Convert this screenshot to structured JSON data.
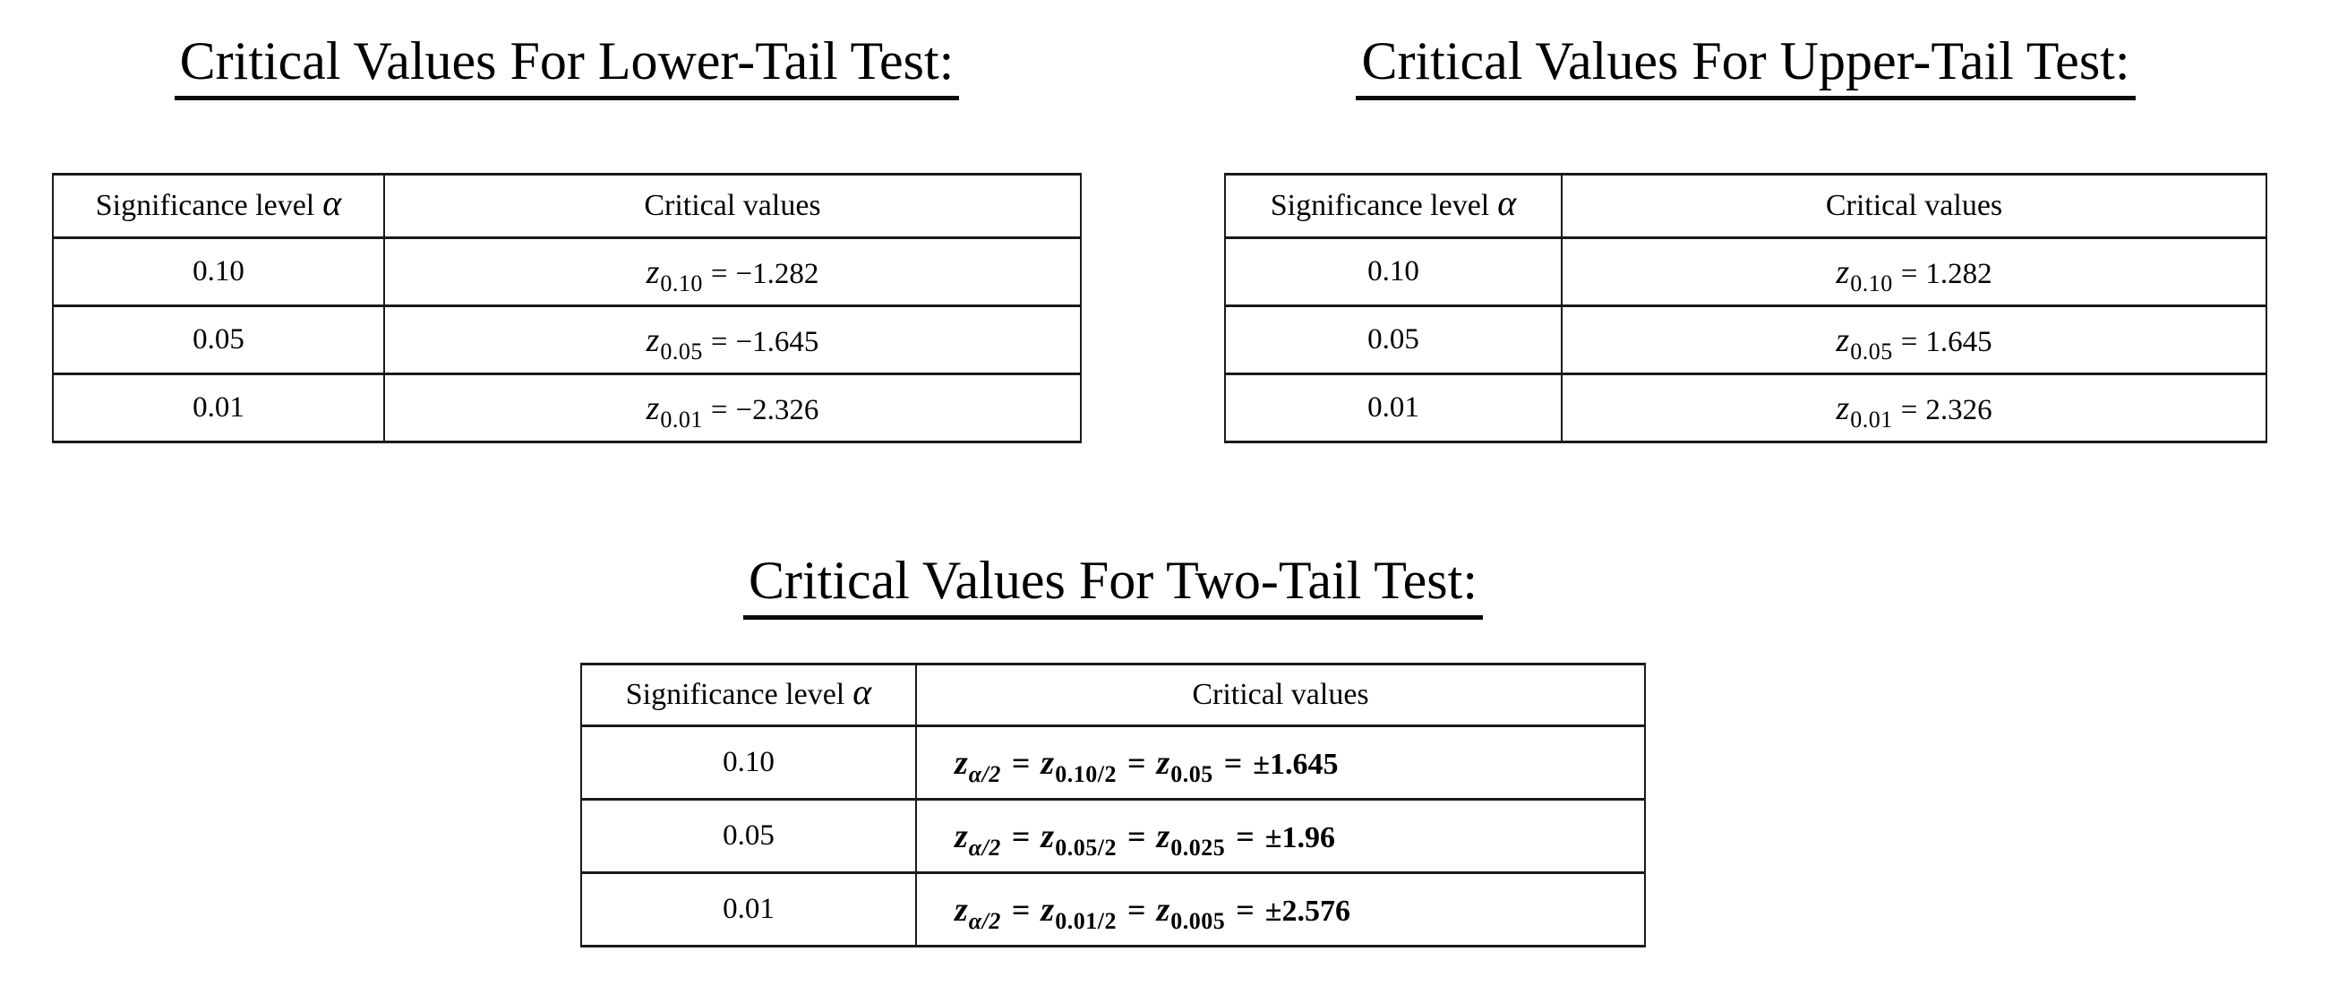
{
  "page": {
    "background_color": "#ffffff",
    "text_color": "#000000",
    "border_color": "#1a1a1a"
  },
  "sections": {
    "lower": {
      "title": "Critical Values For Lower-Tail Test:",
      "table": {
        "header_alpha": {
          "text": "Significance level",
          "symbol": "α"
        },
        "header_critical": "Critical values",
        "rows": [
          {
            "alpha": "0.10",
            "formula": {
              "terms": [
                {
                  "base": "z",
                  "sub": "0.10"
                }
              ],
              "equals": "=",
              "value": "−1.282"
            }
          },
          {
            "alpha": "0.05",
            "formula": {
              "terms": [
                {
                  "base": "z",
                  "sub": "0.05"
                }
              ],
              "equals": "=",
              "value": "−1.645"
            }
          },
          {
            "alpha": "0.01",
            "formula": {
              "terms": [
                {
                  "base": "z",
                  "sub": "0.01"
                }
              ],
              "equals": "=",
              "value": "−2.326"
            }
          }
        ]
      }
    },
    "upper": {
      "title": "Critical Values For Upper-Tail Test:",
      "table": {
        "header_alpha": {
          "text": "Significance level",
          "symbol": "α"
        },
        "header_critical": "Critical values",
        "rows": [
          {
            "alpha": "0.10",
            "formula": {
              "terms": [
                {
                  "base": "z",
                  "sub": "0.10"
                }
              ],
              "equals": "=",
              "value": "1.282"
            }
          },
          {
            "alpha": "0.05",
            "formula": {
              "terms": [
                {
                  "base": "z",
                  "sub": "0.05"
                }
              ],
              "equals": "=",
              "value": "1.645"
            }
          },
          {
            "alpha": "0.01",
            "formula": {
              "terms": [
                {
                  "base": "z",
                  "sub": "0.01"
                }
              ],
              "equals": "=",
              "value": "2.326"
            }
          }
        ]
      }
    },
    "two_tail": {
      "title": "Critical Values For Two-Tail Test:",
      "table": {
        "header_alpha": {
          "text": "Significance level",
          "symbol": "α"
        },
        "header_critical": "Critical values",
        "rows": [
          {
            "alpha": "0.10",
            "formula": {
              "terms": [
                {
                  "base": "z",
                  "sub": "α/2",
                  "italic_sub": true
                },
                {
                  "base": "z",
                  "sub": "0.10/2"
                },
                {
                  "base": "z",
                  "sub": "0.05"
                }
              ],
              "equals": "=",
              "value": "±1.645"
            }
          },
          {
            "alpha": "0.05",
            "formula": {
              "terms": [
                {
                  "base": "z",
                  "sub": "α/2",
                  "italic_sub": true
                },
                {
                  "base": "z",
                  "sub": "0.05/2"
                },
                {
                  "base": "z",
                  "sub": "0.025"
                }
              ],
              "equals": "=",
              "value": "±1.96"
            }
          },
          {
            "alpha": "0.01",
            "formula": {
              "terms": [
                {
                  "base": "z",
                  "sub": "α/2",
                  "italic_sub": true
                },
                {
                  "base": "z",
                  "sub": "0.01/2"
                },
                {
                  "base": "z",
                  "sub": "0.005"
                }
              ],
              "equals": "=",
              "value": "±2.576"
            }
          }
        ]
      }
    }
  }
}
